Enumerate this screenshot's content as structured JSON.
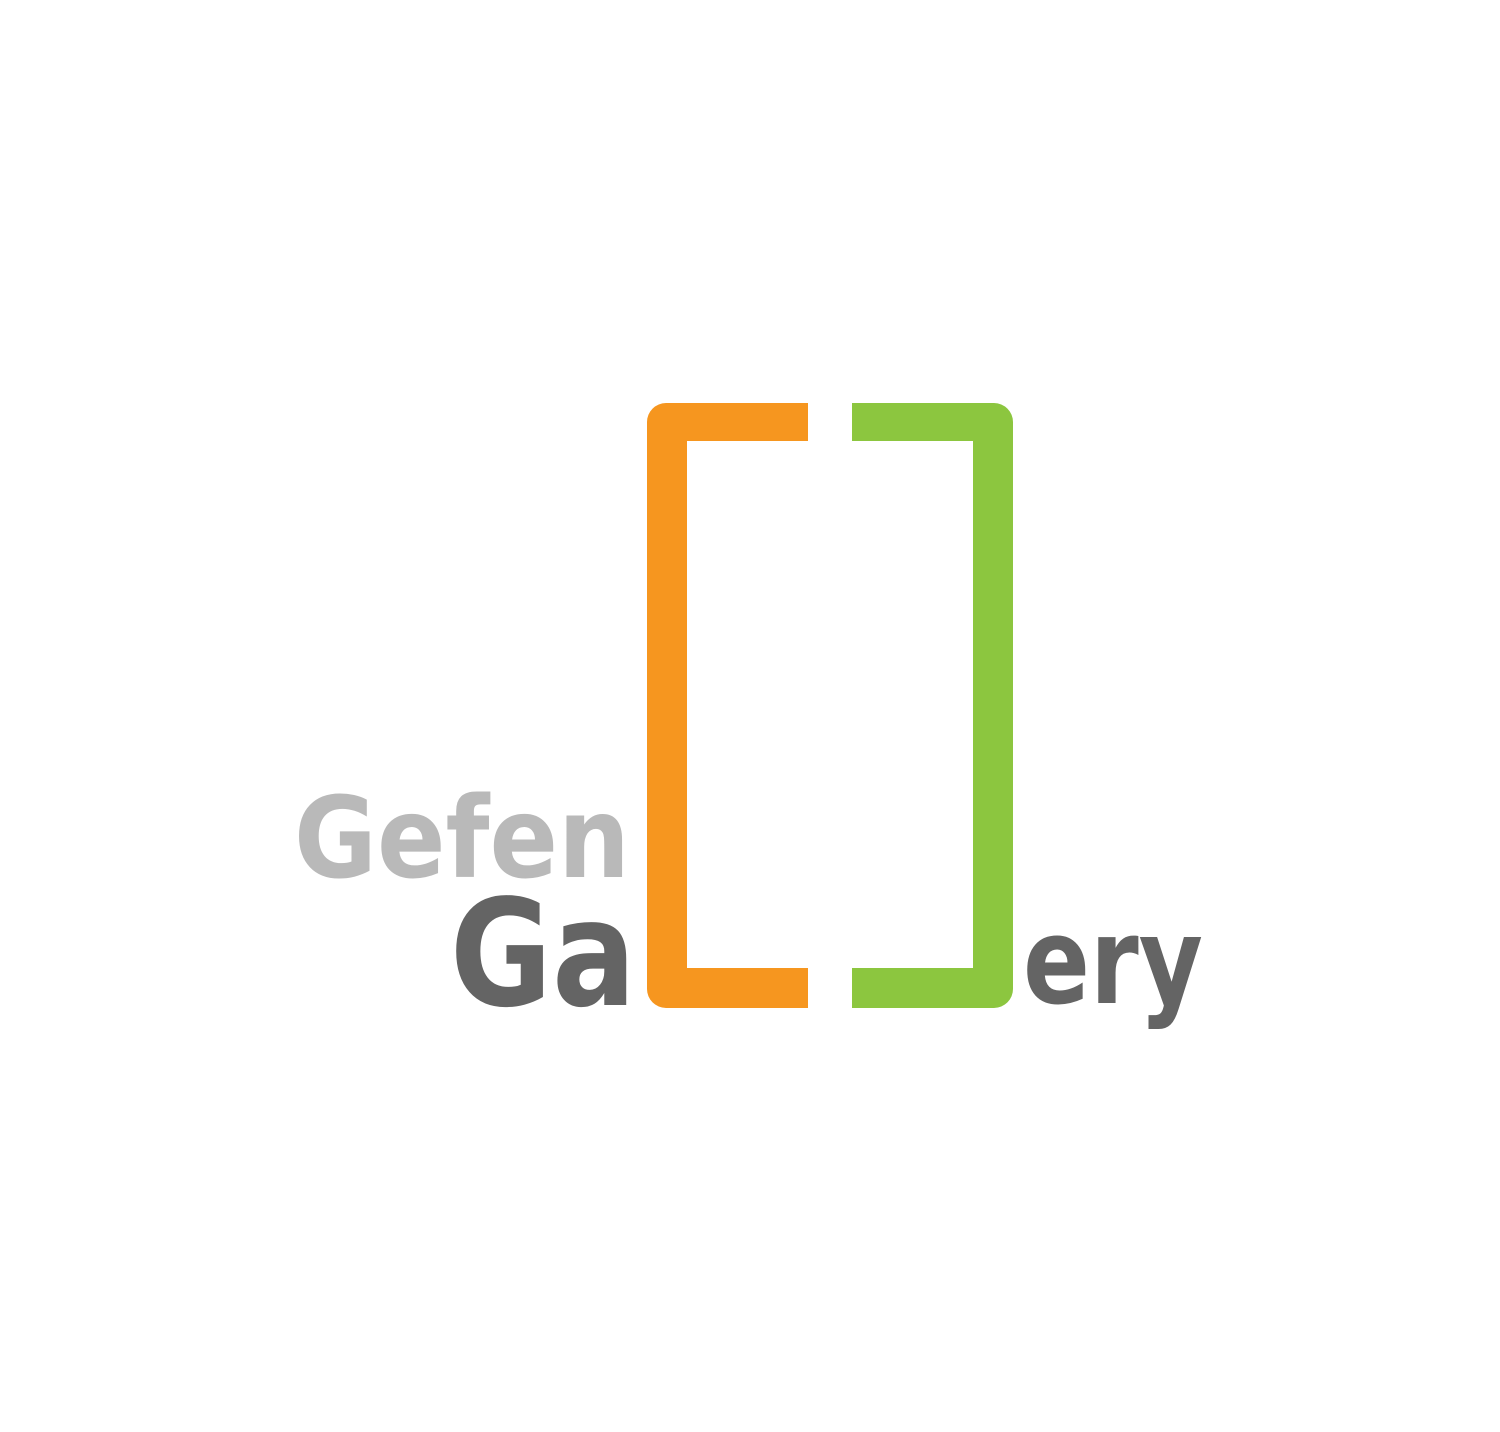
{
  "logo": {
    "word_top": "Gefen",
    "word_bottom_left": "Ga",
    "word_bottom_right": "ery",
    "colors": {
      "background": "#ffffff",
      "word_top": "#b9b9b9",
      "word_bottom": "#646464",
      "bracket_left": "#f6961f",
      "bracket_right": "#8cc63f"
    }
  }
}
